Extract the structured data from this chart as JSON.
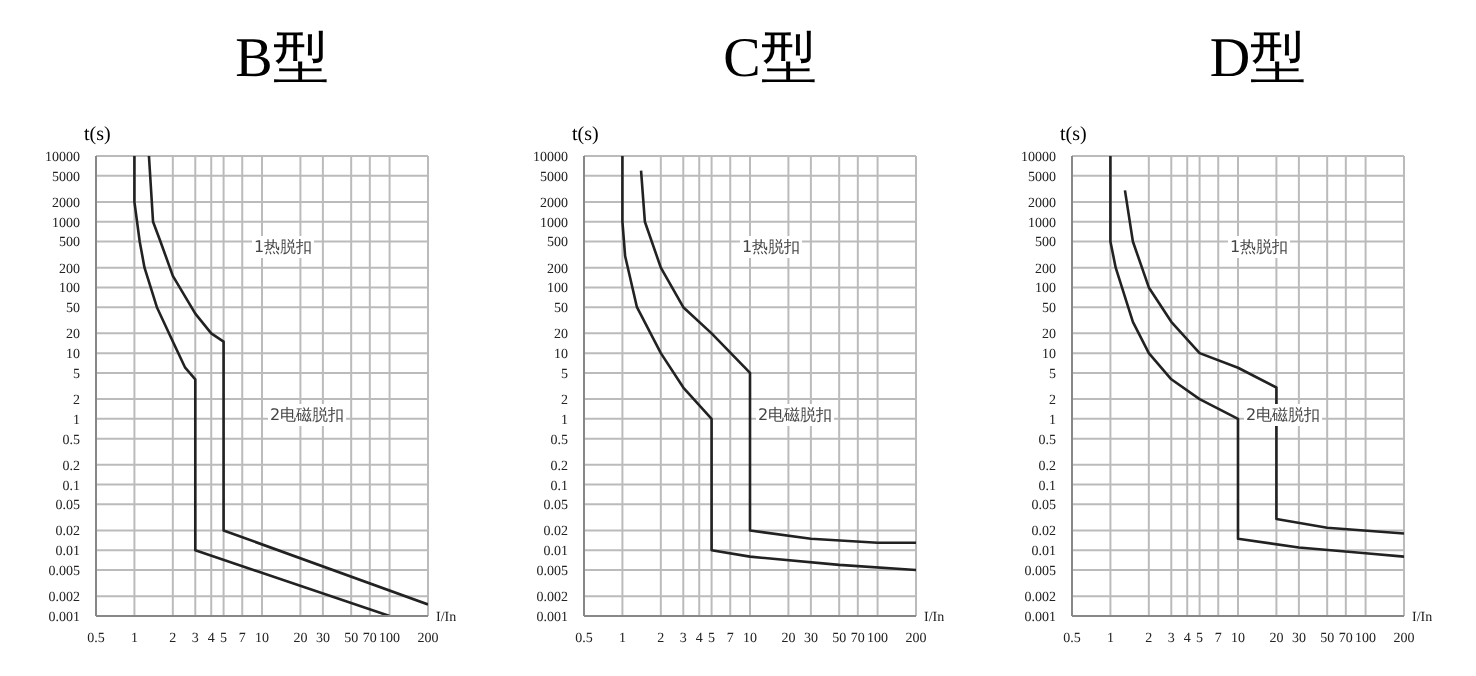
{
  "chart_data": [
    {
      "type": "line",
      "title": "B型",
      "ylabel": "t(s)",
      "xlabel": "I/In",
      "log": "xy",
      "grid": true,
      "legend": false,
      "marker": "none",
      "line_style": "solid",
      "xlim": [
        0.5,
        200
      ],
      "xticks": [
        0.5,
        1,
        2,
        3,
        4,
        5,
        7,
        10,
        20,
        30,
        50,
        70,
        100,
        200
      ],
      "ylim": [
        0.001,
        10000
      ],
      "yticks": [
        0.001,
        0.002,
        0.005,
        0.01,
        0.02,
        0.05,
        0.1,
        0.2,
        0.5,
        1,
        2,
        5,
        10,
        20,
        50,
        100,
        200,
        500,
        1000,
        2000,
        5000,
        10000
      ],
      "series": [
        {
          "color": "#222222",
          "x": [
            1,
            1,
            1.1,
            1.2,
            1.5,
            2,
            2.5,
            3,
            3,
            100
          ],
          "values": [
            10000,
            2000,
            500,
            200,
            50,
            15,
            6,
            4,
            0.01,
            0.001
          ]
        },
        {
          "color": "#222222",
          "x": [
            1.3,
            1.4,
            1.6,
            2,
            3,
            4,
            5,
            5,
            200
          ],
          "values": [
            10000,
            1000,
            500,
            150,
            40,
            20,
            15,
            0.02,
            0.0015
          ]
        }
      ],
      "annotations": [
        "1热脱扣",
        "2电磁脱扣"
      ]
    },
    {
      "type": "line",
      "title": "C型",
      "ylabel": "t(s)",
      "xlabel": "I/In",
      "log": "xy",
      "grid": true,
      "legend": false,
      "marker": "none",
      "line_style": "solid",
      "xlim": [
        0.5,
        200
      ],
      "xticks": [
        0.5,
        1,
        2,
        3,
        4,
        5,
        7,
        10,
        20,
        30,
        50,
        70,
        100,
        200
      ],
      "ylim": [
        0.001,
        10000
      ],
      "yticks": [
        0.001,
        0.002,
        0.005,
        0.01,
        0.02,
        0.05,
        0.1,
        0.2,
        0.5,
        1,
        2,
        5,
        10,
        20,
        50,
        100,
        200,
        500,
        1000,
        2000,
        5000,
        10000
      ],
      "series": [
        {
          "color": "#222222",
          "x": [
            1,
            1,
            1.05,
            1.3,
            2,
            3,
            5,
            5,
            10,
            50,
            200
          ],
          "values": [
            10000,
            1000,
            300,
            50,
            10,
            3,
            1,
            0.01,
            0.008,
            0.006,
            0.005
          ]
        },
        {
          "color": "#222222",
          "x": [
            1.4,
            1.5,
            2,
            3,
            5,
            10,
            10,
            30,
            100,
            200
          ],
          "values": [
            6000,
            1000,
            200,
            50,
            20,
            5,
            0.02,
            0.015,
            0.013,
            0.013
          ]
        }
      ],
      "annotations": [
        "1热脱扣",
        "2电磁脱扣"
      ]
    },
    {
      "type": "line",
      "title": "D型",
      "ylabel": "t(s)",
      "xlabel": "I/In",
      "log": "xy",
      "grid": true,
      "legend": false,
      "marker": "none",
      "line_style": "solid",
      "xlim": [
        0.5,
        200
      ],
      "xticks": [
        0.5,
        1,
        2,
        3,
        4,
        5,
        7,
        10,
        20,
        30,
        50,
        70,
        100,
        200
      ],
      "ylim": [
        0.001,
        10000
      ],
      "yticks": [
        0.001,
        0.002,
        0.005,
        0.01,
        0.02,
        0.05,
        0.1,
        0.2,
        0.5,
        1,
        2,
        5,
        10,
        20,
        50,
        100,
        200,
        500,
        1000,
        2000,
        5000,
        10000
      ],
      "series": [
        {
          "color": "#222222",
          "x": [
            1,
            1,
            1.1,
            1.5,
            2,
            3,
            5,
            10,
            10,
            30,
            100,
            200
          ],
          "values": [
            10000,
            500,
            200,
            30,
            10,
            4,
            2,
            1,
            0.015,
            0.011,
            0.009,
            0.008
          ]
        },
        {
          "color": "#222222",
          "x": [
            1.3,
            1.5,
            2,
            3,
            5,
            10,
            20,
            20,
            50,
            200
          ],
          "values": [
            3000,
            500,
            100,
            30,
            10,
            6,
            3,
            0.03,
            0.022,
            0.018
          ]
        }
      ],
      "annotations": [
        "1热脱扣",
        "2电磁脱扣"
      ]
    }
  ]
}
